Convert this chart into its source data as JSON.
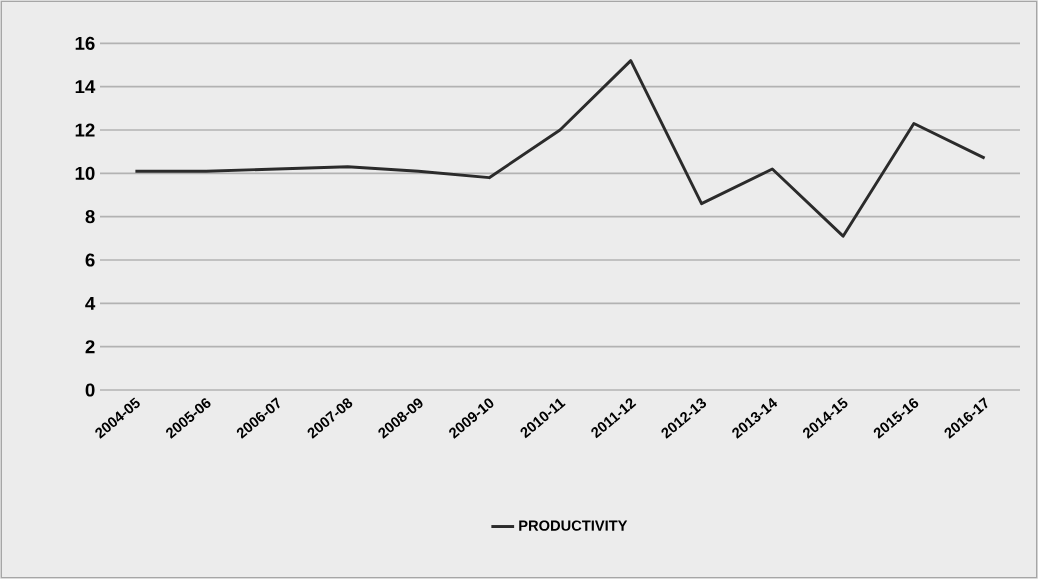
{
  "chart_data": {
    "type": "line",
    "categories": [
      "2004-05",
      "2005-06",
      "2006-07",
      "2007-08",
      "2008-09",
      "2009-10",
      "2010-11",
      "2011-12",
      "2012-13",
      "2013-14",
      "2014-15",
      "2015-16",
      "2016-17"
    ],
    "series": [
      {
        "name": "PRODUCTIVITY",
        "color": "#2b2b2b",
        "values": [
          10.1,
          10.1,
          10.2,
          10.3,
          10.1,
          9.8,
          12.0,
          15.2,
          8.6,
          10.2,
          7.1,
          12.3,
          10.7
        ]
      }
    ],
    "ylim": [
      0,
      16
    ],
    "yticks": [
      0,
      2,
      4,
      6,
      8,
      10,
      12,
      14,
      16
    ],
    "grid": "y",
    "legend": "bottom",
    "marker": "none",
    "line_style": "solid"
  }
}
